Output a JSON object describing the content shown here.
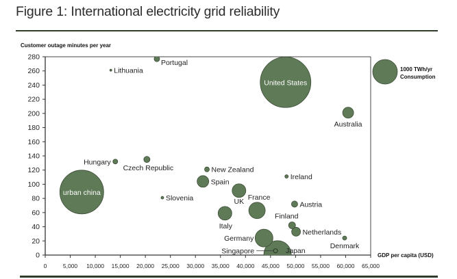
{
  "figure": {
    "title": "Figure 1: International electricity grid reliability"
  },
  "chart_data": {
    "type": "scatter",
    "subtype": "bubble",
    "title": "Figure 1: International electricity grid reliability",
    "xlabel": "GDP per capita (USD)",
    "ylabel": "Customer outage minutes per year",
    "xlim": [
      0,
      65000
    ],
    "ylim": [
      0,
      280
    ],
    "xticks": [
      0,
      5000,
      10000,
      15000,
      20000,
      25000,
      30000,
      35000,
      40000,
      45000,
      50000,
      55000,
      60000,
      65000
    ],
    "xtick_labels": [
      "0",
      "5,000",
      "10,000",
      "15,000",
      "20,000",
      "25,000",
      "30,000",
      "35,000",
      "40,000",
      "45,000",
      "50,000",
      "55,000",
      "60,000",
      "65,000"
    ],
    "yticks": [
      0,
      20,
      40,
      60,
      80,
      100,
      120,
      140,
      160,
      180,
      200,
      220,
      240,
      260,
      280
    ],
    "ytick_labels": [
      "0",
      "20",
      "40",
      "60",
      "80",
      "100",
      "120",
      "140",
      "160",
      "180",
      "200",
      "220",
      "240",
      "260",
      "280"
    ],
    "grid": false,
    "bubble_color": "#5f7a57",
    "bubble_edge": "#3d4d38",
    "size_unit": "TWh/yr consumption",
    "legend": {
      "label_line1": "1000 TWh/yr",
      "label_line2": "Consumption",
      "size_value": 1000,
      "placement": "right"
    },
    "points": [
      {
        "name": "Lithuania",
        "x": 13100,
        "y": 261,
        "size": 7,
        "label_pos": "right"
      },
      {
        "name": "Portugal",
        "x": 22300,
        "y": 277,
        "size": 49,
        "label_pos": "below-right"
      },
      {
        "name": "United States",
        "x": 48000,
        "y": 244,
        "size": 4225,
        "label_pos": "inside"
      },
      {
        "name": "Australia",
        "x": 60500,
        "y": 201,
        "size": 198,
        "label_pos": "below"
      },
      {
        "name": "Hungary",
        "x": 14000,
        "y": 132,
        "size": 38,
        "label_pos": "left"
      },
      {
        "name": "Czech Republic",
        "x": 20300,
        "y": 135,
        "size": 63,
        "label_pos": "below"
      },
      {
        "name": "urban china",
        "x": 7300,
        "y": 89,
        "size": 3160,
        "label_pos": "inside"
      },
      {
        "name": "New Zealand",
        "x": 32300,
        "y": 121,
        "size": 38,
        "label_pos": "right"
      },
      {
        "name": "Spain",
        "x": 31500,
        "y": 104,
        "size": 223,
        "label_pos": "right"
      },
      {
        "name": "Slovenia",
        "x": 23400,
        "y": 81,
        "size": 12,
        "label_pos": "right"
      },
      {
        "name": "Ireland",
        "x": 48200,
        "y": 111,
        "size": 19,
        "label_pos": "right"
      },
      {
        "name": "UK",
        "x": 38700,
        "y": 91,
        "size": 309,
        "label_pos": "below"
      },
      {
        "name": "France",
        "x": 42300,
        "y": 63,
        "size": 444,
        "label_pos": "above"
      },
      {
        "name": "Austria",
        "x": 49800,
        "y": 72,
        "size": 63,
        "label_pos": "right"
      },
      {
        "name": "Italy",
        "x": 35900,
        "y": 59,
        "size": 309,
        "label_pos": "below"
      },
      {
        "name": "Finland",
        "x": 49300,
        "y": 42,
        "size": 77,
        "label_pos": "above"
      },
      {
        "name": "Netherlands",
        "x": 50100,
        "y": 33,
        "size": 130,
        "label_pos": "right"
      },
      {
        "name": "Germany",
        "x": 43700,
        "y": 24,
        "size": 522,
        "label_pos": "left"
      },
      {
        "name": "Japan",
        "x": 46400,
        "y": 1,
        "size": 1235,
        "label_pos": "right"
      },
      {
        "name": "Singapore",
        "x": 46000,
        "y": 6,
        "size": 28,
        "label_pos": "left-leader"
      },
      {
        "name": "Denmark",
        "x": 59800,
        "y": 24,
        "size": 28,
        "label_pos": "below"
      }
    ]
  }
}
